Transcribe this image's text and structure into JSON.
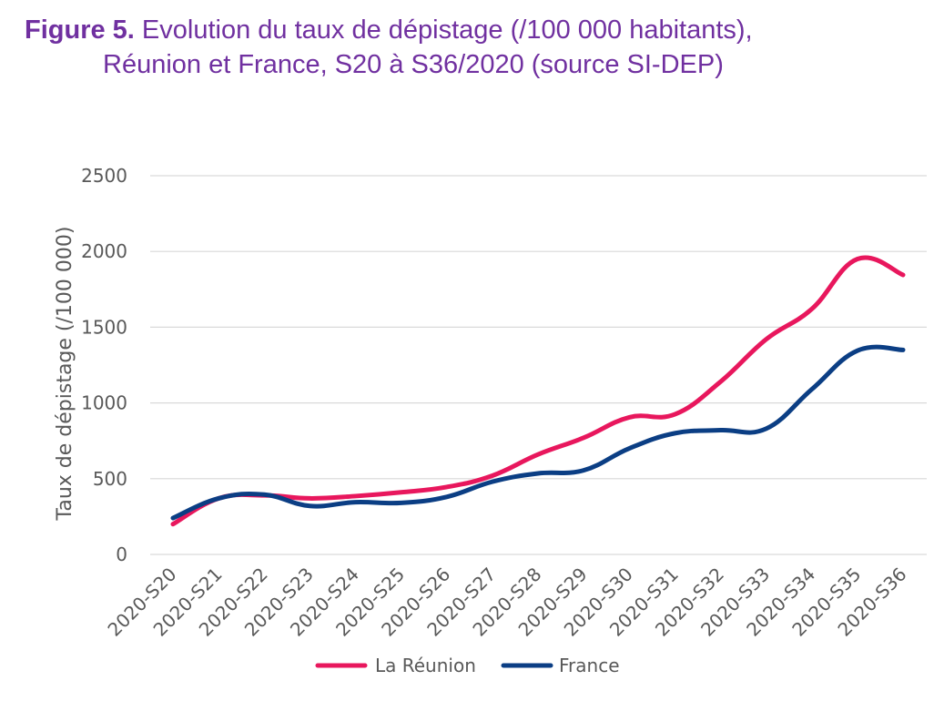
{
  "figure": {
    "label": "Figure 5.",
    "title_part1": "Evolution du taux de dépistage (/100 000 habitants),",
    "title_part2": "Réunion et France, S20 à S36/2020 (source SI-DEP)"
  },
  "chart_data": {
    "type": "line",
    "title": "Figure 5. Evolution du taux de dépistage (/100 000 habitants), Réunion et France, S20 à S36/2020 (source SI-DEP)",
    "xlabel": "",
    "ylabel": "Taux de dépistage  (/100 000)",
    "ylim": [
      0,
      2500
    ],
    "yticks": [
      0,
      500,
      1000,
      1500,
      2000,
      2500
    ],
    "grid": "horizontal",
    "legend_position": "bottom",
    "categories": [
      "2020-S20",
      "2020-S21",
      "2020-S22",
      "2020-S23",
      "2020-S24",
      "2020-S25",
      "2020-S26",
      "2020-S27",
      "2020-S28",
      "2020-S29",
      "2020-S30",
      "2020-S31",
      "2020-S32",
      "2020-S33",
      "2020-S34",
      "2020-S35",
      "2020-S36"
    ],
    "series": [
      {
        "name": "La Réunion",
        "color": "#E8175D",
        "values": [
          200,
          370,
          390,
          370,
          385,
          410,
          445,
          520,
          660,
          770,
          905,
          925,
          1140,
          1420,
          1620,
          1950,
          1845
        ]
      },
      {
        "name": "France",
        "color": "#0B3E84",
        "values": [
          240,
          370,
          395,
          320,
          345,
          340,
          380,
          480,
          535,
          555,
          700,
          800,
          820,
          830,
          1090,
          1345,
          1350
        ]
      }
    ]
  }
}
